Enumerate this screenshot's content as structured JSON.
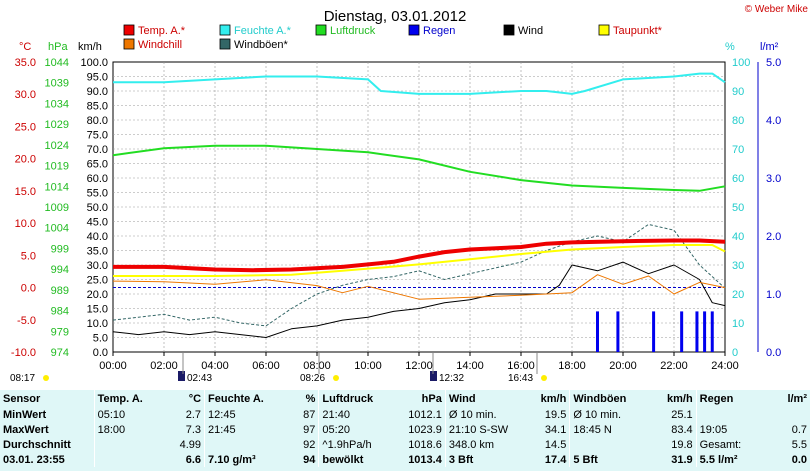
{
  "title": "Dienstag, 03.01.2012",
  "credit": "© Weber Mike",
  "colors": {
    "temp": "#ee0000",
    "humidity": "#33eeee",
    "pressure": "#22dd22",
    "rain": "#0000ee",
    "wind": "#000000",
    "dewpoint": "#ffff00",
    "windchill": "#ee7700",
    "gusts": "#336666",
    "grid": "#999999",
    "table_bg": "#dff7f7"
  },
  "legend": [
    {
      "key": "temp",
      "label": "Temp. A.*",
      "color": "#ee0000"
    },
    {
      "key": "humidity",
      "label": "Feuchte A.*",
      "color": "#33eeee"
    },
    {
      "key": "pressure",
      "label": "Luftdruck",
      "color": "#22dd22"
    },
    {
      "key": "rain",
      "label": "Regen",
      "color": "#0000ee"
    },
    {
      "key": "wind",
      "label": "Wind",
      "color": "#000000"
    },
    {
      "key": "dewpoint",
      "label": "Taupunkt*",
      "color": "#ffff00"
    },
    {
      "key": "windchill",
      "label": "Windchill",
      "color": "#ee7700"
    },
    {
      "key": "gusts",
      "label": "Windböen*",
      "color": "#336666"
    }
  ],
  "chart_data": {
    "type": "line",
    "x_ticks": [
      "00:00",
      "02:00",
      "04:00",
      "06:00",
      "08:00",
      "10:00",
      "12:00",
      "14:00",
      "16:00",
      "18:00",
      "20:00",
      "22:00",
      "24:00"
    ],
    "axes": {
      "temp": {
        "unit": "°C",
        "ticks": [
          "35.0",
          "30.0",
          "25.0",
          "20.0",
          "15.0",
          "10.0",
          "5.0",
          "0.0",
          "-5.0",
          "-10.0"
        ],
        "range": [
          -10,
          35
        ],
        "color": "#ee0000"
      },
      "pressure": {
        "unit": "hPa",
        "ticks": [
          "1044",
          "1039",
          "1034",
          "1029",
          "1024",
          "1019",
          "1014",
          "1009",
          "1004",
          "999",
          "994",
          "989",
          "984",
          "979",
          "974"
        ],
        "range": [
          974,
          1044
        ],
        "color": "#22dd22"
      },
      "wind": {
        "unit": "km/h",
        "ticks": [
          "100.0",
          "95.0",
          "90.0",
          "85.0",
          "80.0",
          "75.0",
          "70.0",
          "65.0",
          "60.0",
          "55.0",
          "50.0",
          "45.0",
          "40.0",
          "35.0",
          "30.0",
          "25.0",
          "20.0",
          "15.0",
          "10.0",
          "5.0",
          "0.0"
        ],
        "range": [
          0,
          100
        ],
        "color": "#000000"
      },
      "humidity": {
        "unit": "%",
        "ticks": [
          "100",
          "90",
          "80",
          "70",
          "60",
          "50",
          "40",
          "30",
          "20",
          "10",
          "0"
        ],
        "range": [
          0,
          100
        ],
        "color": "#33eeee"
      },
      "rain": {
        "unit": "l/m²",
        "ticks": [
          "5.0",
          "4.0",
          "3.0",
          "2.0",
          "1.0",
          "0.0"
        ],
        "range": [
          0,
          5
        ],
        "color": "#0000ee"
      }
    },
    "series": [
      {
        "name": "Temp. A.*",
        "axis": "temp",
        "x": [
          0,
          2,
          4,
          5.5,
          7,
          9,
          11,
          12,
          13,
          14,
          16,
          17,
          18,
          20,
          22,
          23,
          24
        ],
        "y": [
          3.2,
          3.2,
          2.8,
          2.7,
          2.8,
          3.2,
          4.0,
          4.8,
          5.5,
          5.9,
          6.3,
          6.8,
          7.0,
          7.2,
          7.3,
          7.3,
          7.1
        ]
      },
      {
        "name": "Feuchte A.*",
        "axis": "humidity",
        "x": [
          0,
          2,
          4,
          6,
          8,
          10,
          10.5,
          12,
          14,
          16,
          17,
          18,
          18.5,
          20,
          22,
          23,
          23.5,
          24
        ],
        "y": [
          93,
          93,
          94,
          95,
          95,
          94,
          90,
          89,
          89,
          90,
          90,
          89,
          90,
          94,
          95,
          96,
          96,
          93
        ]
      },
      {
        "name": "Luftdruck",
        "axis": "pressure",
        "x": [
          0,
          2,
          4,
          6,
          8,
          10,
          12,
          14,
          16,
          18,
          20,
          22,
          23,
          24
        ],
        "y": [
          1021.5,
          1023.2,
          1023.8,
          1023.8,
          1023.0,
          1022.2,
          1020.5,
          1017.5,
          1015.5,
          1014.2,
          1013.6,
          1013.1,
          1012.9,
          1014.0
        ]
      },
      {
        "name": "Taupunkt*",
        "axis": "temp",
        "x": [
          0,
          4,
          7,
          9,
          12,
          14,
          16,
          18,
          20,
          22,
          23.5,
          24
        ],
        "y": [
          1.8,
          1.8,
          2.0,
          2.6,
          3.6,
          4.4,
          5.2,
          5.9,
          6.3,
          6.6,
          6.6,
          5.6
        ]
      },
      {
        "name": "Windchill",
        "axis": "temp",
        "x": [
          0,
          2,
          4,
          6,
          8,
          9,
          10,
          12,
          14,
          16,
          18,
          19,
          20,
          21,
          22,
          23,
          24
        ],
        "y": [
          1.0,
          0.9,
          0.5,
          1.2,
          0.3,
          -0.8,
          0.2,
          -1.8,
          -1.5,
          -1.2,
          -0.8,
          2.0,
          0.5,
          1.8,
          -1.0,
          0.8,
          0.0
        ]
      },
      {
        "name": "Wind",
        "axis": "wind",
        "x": [
          0,
          1,
          2,
          3,
          4,
          5,
          6,
          7,
          8,
          9,
          10,
          11,
          12,
          13,
          14,
          15,
          16,
          17,
          17.5,
          18,
          19,
          20,
          21,
          22,
          23,
          23.5,
          24
        ],
        "y": [
          7,
          6,
          7,
          6,
          7,
          6,
          5,
          8,
          9,
          11,
          12,
          14,
          15,
          17,
          18,
          20,
          20,
          20,
          23,
          30,
          28,
          31,
          27,
          30,
          25,
          17,
          16
        ]
      },
      {
        "name": "Windböen*",
        "axis": "wind",
        "x": [
          0,
          1,
          2,
          3,
          4,
          5,
          6,
          7,
          8,
          9,
          10,
          11,
          12,
          13,
          14,
          15,
          16,
          17,
          18,
          19,
          20,
          21,
          22,
          23,
          24
        ],
        "y": [
          11,
          12,
          13,
          11,
          12,
          10,
          9,
          15,
          20,
          23,
          25,
          26,
          28,
          25,
          27,
          29,
          31,
          35,
          38,
          40,
          38,
          44,
          42,
          30,
          22
        ]
      },
      {
        "name": "Regen",
        "axis": "rain",
        "type": "bar",
        "x": [
          19.0,
          19.8,
          21.2,
          22.3,
          22.9,
          23.2,
          23.5
        ],
        "y": [
          0.7,
          0.7,
          0.7,
          0.7,
          0.7,
          0.7,
          0.7
        ]
      }
    ],
    "events": [
      {
        "label": "08:17",
        "x": "08:17"
      },
      {
        "label": "02:43",
        "x": "02:43"
      },
      {
        "label": "08:26",
        "x": "08:26"
      },
      {
        "label": "12:32",
        "x": "12:32"
      },
      {
        "label": "16:43",
        "x": "16:43"
      }
    ]
  },
  "table": {
    "header": [
      "Sensor",
      "Temp. A.",
      "°C",
      "Feuchte A.",
      "%",
      "Luftdruck",
      "hPa",
      "Wind",
      "km/h",
      "Windböen",
      "km/h",
      "Regen",
      "l/m²"
    ],
    "rows": [
      [
        "MinWert",
        "05:10",
        "2.7",
        "12:45",
        "87",
        "21:40",
        "1012.1",
        "Ø 10 min.",
        "19.5",
        "Ø 10 min.",
        "25.1",
        "",
        ""
      ],
      [
        "MaxWert",
        "18:00",
        "7.3",
        "21:45",
        "97",
        "05:20",
        "1023.9",
        "21:10  S-SW",
        "34.1",
        "18:45  N",
        "83.4",
        "19:05",
        "0.7"
      ],
      [
        "Durchschnitt",
        "",
        "4.99",
        "",
        "92",
        "^1.9hPa/h",
        "1018.6",
        "348.0 km",
        "14.5",
        "",
        "19.8",
        "Gesamt:",
        "5.5"
      ],
      [
        "03.01. 23:55",
        "",
        "6.6",
        "7.10 g/m³",
        "94",
        "bewölkt",
        "1013.4",
        "3 Bft",
        "17.4",
        "5 Bft",
        "31.9",
        "5.5 l/m²",
        "0.0"
      ]
    ]
  }
}
